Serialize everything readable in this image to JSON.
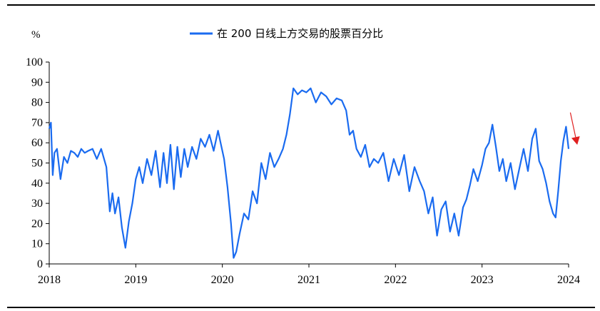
{
  "chart_data": {
    "type": "line",
    "title": "",
    "y_unit_label": "%",
    "ylim": [
      0,
      100
    ],
    "y_ticks": [
      0,
      10,
      20,
      30,
      40,
      50,
      60,
      70,
      80,
      90,
      100
    ],
    "xlim": [
      2018.0,
      2024.0
    ],
    "x_ticks": [
      "2018",
      "2019",
      "2020",
      "2021",
      "2022",
      "2023",
      "2024"
    ],
    "grid": false,
    "legend_position": "top-center",
    "series": [
      {
        "name": "在 200 日线上方交易的股票百分比",
        "color": "#1a6bf0",
        "x": [
          2018.0,
          2018.02,
          2018.04,
          2018.06,
          2018.09,
          2018.13,
          2018.17,
          2018.21,
          2018.25,
          2018.29,
          2018.33,
          2018.37,
          2018.41,
          2018.45,
          2018.5,
          2018.55,
          2018.6,
          2018.66,
          2018.7,
          2018.73,
          2018.76,
          2018.8,
          2018.84,
          2018.88,
          2018.92,
          2018.96,
          2019.0,
          2019.04,
          2019.08,
          2019.13,
          2019.18,
          2019.23,
          2019.28,
          2019.32,
          2019.36,
          2019.4,
          2019.44,
          2019.48,
          2019.52,
          2019.56,
          2019.6,
          2019.65,
          2019.7,
          2019.75,
          2019.8,
          2019.85,
          2019.9,
          2019.95,
          2019.98,
          2020.02,
          2020.06,
          2020.1,
          2020.13,
          2020.16,
          2020.2,
          2020.25,
          2020.3,
          2020.35,
          2020.4,
          2020.45,
          2020.5,
          2020.55,
          2020.6,
          2020.65,
          2020.7,
          2020.74,
          2020.78,
          2020.82,
          2020.87,
          2020.92,
          2020.97,
          2021.02,
          2021.08,
          2021.14,
          2021.2,
          2021.26,
          2021.32,
          2021.38,
          2021.43,
          2021.47,
          2021.51,
          2021.55,
          2021.6,
          2021.65,
          2021.7,
          2021.75,
          2021.8,
          2021.86,
          2021.92,
          2021.98,
          2022.04,
          2022.1,
          2022.16,
          2022.22,
          2022.28,
          2022.33,
          2022.38,
          2022.43,
          2022.48,
          2022.53,
          2022.58,
          2022.63,
          2022.68,
          2022.73,
          2022.78,
          2022.82,
          2022.86,
          2022.9,
          2022.95,
          2023.0,
          2023.04,
          2023.08,
          2023.12,
          2023.16,
          2023.2,
          2023.24,
          2023.28,
          2023.33,
          2023.38,
          2023.43,
          2023.48,
          2023.53,
          2023.58,
          2023.62,
          2023.66,
          2023.7,
          2023.74,
          2023.78,
          2023.82,
          2023.85,
          2023.88,
          2023.91,
          2023.94,
          2023.97,
          2024.0
        ],
        "values": [
          67,
          70,
          44,
          55,
          57,
          42,
          53,
          50,
          56,
          55,
          53,
          57,
          55,
          56,
          57,
          52,
          57,
          48,
          26,
          35,
          25,
          33,
          18,
          8,
          21,
          30,
          42,
          48,
          40,
          52,
          44,
          56,
          38,
          55,
          40,
          59,
          37,
          58,
          43,
          57,
          48,
          58,
          52,
          62,
          58,
          64,
          56,
          66,
          60,
          52,
          38,
          20,
          3,
          6,
          15,
          25,
          22,
          36,
          30,
          50,
          42,
          55,
          48,
          52,
          57,
          64,
          74,
          87,
          84,
          86,
          85,
          87,
          80,
          85,
          83,
          79,
          82,
          81,
          76,
          64,
          66,
          57,
          53,
          59,
          48,
          52,
          50,
          55,
          41,
          52,
          44,
          54,
          36,
          48,
          41,
          36,
          25,
          33,
          14,
          27,
          31,
          16,
          25,
          14,
          28,
          32,
          39,
          47,
          41,
          49,
          57,
          60,
          69,
          58,
          46,
          52,
          41,
          50,
          37,
          47,
          57,
          46,
          62,
          67,
          51,
          47,
          40,
          31,
          25,
          23,
          36,
          51,
          61,
          68,
          57
        ]
      }
    ],
    "annotation": {
      "type": "arrow",
      "color": "#e02020",
      "from": [
        2024.02,
        75
      ],
      "to": [
        2024.1,
        59
      ]
    }
  }
}
